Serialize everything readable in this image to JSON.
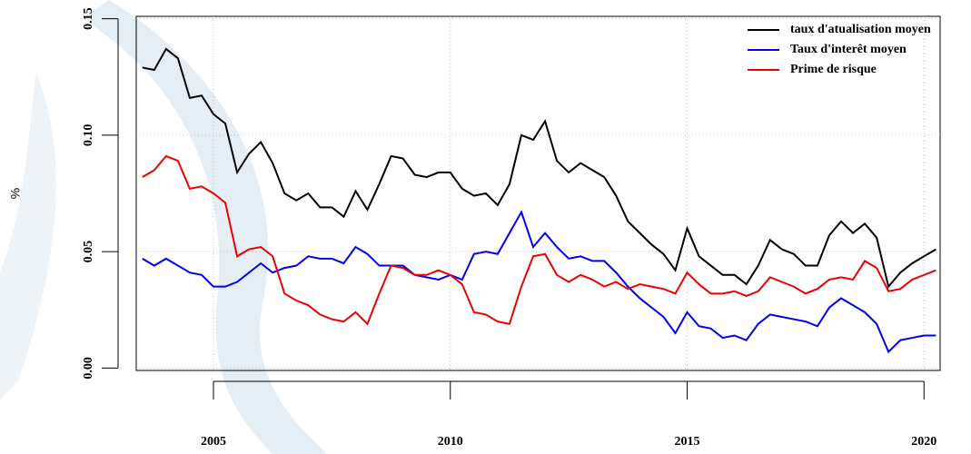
{
  "chart_data": {
    "type": "line",
    "ylabel": "%",
    "x": [
      2003.5,
      2003.75,
      2004,
      2004.25,
      2004.5,
      2004.75,
      2005,
      2005.25,
      2005.5,
      2005.75,
      2006,
      2006.25,
      2006.5,
      2006.75,
      2007,
      2007.25,
      2007.5,
      2007.75,
      2008,
      2008.25,
      2008.5,
      2008.75,
      2009,
      2009.25,
      2009.5,
      2009.75,
      2010,
      2010.25,
      2010.5,
      2010.75,
      2011,
      2011.25,
      2011.5,
      2011.75,
      2012,
      2012.25,
      2012.5,
      2012.75,
      2013,
      2013.25,
      2013.5,
      2013.75,
      2014,
      2014.25,
      2014.5,
      2014.75,
      2015,
      2015.25,
      2015.5,
      2015.75,
      2016,
      2016.25,
      2016.5,
      2016.75,
      2017,
      2017.25,
      2017.5,
      2017.75,
      2018,
      2018.25,
      2018.5,
      2018.75,
      2019,
      2019.25,
      2019.5,
      2019.75,
      2020,
      2020.25
    ],
    "series": [
      {
        "name": "taux d'atualisation moyen",
        "color": "#000000",
        "values": [
          0.129,
          0.128,
          0.137,
          0.133,
          0.116,
          0.117,
          0.109,
          0.105,
          0.084,
          0.092,
          0.097,
          0.088,
          0.075,
          0.072,
          0.075,
          0.069,
          0.069,
          0.065,
          0.076,
          0.068,
          0.079,
          0.091,
          0.09,
          0.083,
          0.082,
          0.084,
          0.084,
          0.077,
          0.074,
          0.075,
          0.07,
          0.079,
          0.1,
          0.098,
          0.106,
          0.089,
          0.084,
          0.088,
          0.085,
          0.082,
          0.074,
          0.063,
          0.058,
          0.053,
          0.049,
          0.042,
          0.06,
          0.048,
          0.044,
          0.04,
          0.04,
          0.036,
          0.044,
          0.055,
          0.051,
          0.049,
          0.044,
          0.044,
          0.057,
          0.063,
          0.058,
          0.062,
          0.056,
          0.035,
          0.041,
          0.045,
          0.048,
          0.051
        ]
      },
      {
        "name": "Taux d'interêt moyen",
        "color": "#0000ee",
        "values": [
          0.047,
          0.044,
          0.047,
          0.044,
          0.041,
          0.04,
          0.035,
          0.035,
          0.037,
          0.041,
          0.045,
          0.041,
          0.043,
          0.044,
          0.048,
          0.047,
          0.047,
          0.045,
          0.052,
          0.049,
          0.044,
          0.044,
          0.044,
          0.04,
          0.039,
          0.038,
          0.04,
          0.038,
          0.049,
          0.05,
          0.049,
          0.058,
          0.067,
          0.052,
          0.058,
          0.052,
          0.047,
          0.048,
          0.046,
          0.046,
          0.041,
          0.035,
          0.03,
          0.026,
          0.022,
          0.015,
          0.024,
          0.018,
          0.017,
          0.013,
          0.014,
          0.012,
          0.019,
          0.023,
          0.022,
          0.021,
          0.02,
          0.018,
          0.026,
          0.03,
          0.027,
          0.024,
          0.019,
          0.007,
          0.012,
          0.013,
          0.014,
          0.014
        ]
      },
      {
        "name": "Prime de risque",
        "color": "#ee0000",
        "values": [
          0.082,
          0.085,
          0.091,
          0.089,
          0.077,
          0.078,
          0.075,
          0.071,
          0.048,
          0.051,
          0.052,
          0.048,
          0.032,
          0.029,
          0.027,
          0.023,
          0.021,
          0.02,
          0.024,
          0.019,
          0.032,
          0.044,
          0.043,
          0.04,
          0.04,
          0.042,
          0.04,
          0.036,
          0.024,
          0.023,
          0.02,
          0.019,
          0.035,
          0.048,
          0.049,
          0.04,
          0.037,
          0.04,
          0.038,
          0.035,
          0.037,
          0.034,
          0.036,
          0.035,
          0.034,
          0.032,
          0.041,
          0.036,
          0.032,
          0.032,
          0.033,
          0.031,
          0.033,
          0.039,
          0.037,
          0.035,
          0.032,
          0.034,
          0.038,
          0.039,
          0.038,
          0.046,
          0.043,
          0.033,
          0.034,
          0.038,
          0.04,
          0.042
        ]
      }
    ],
    "xlim": [
      2003.37,
      2020.34
    ],
    "xticks": [
      2005,
      2010,
      2015,
      2020
    ],
    "ylim": [
      -0.001,
      0.151
    ],
    "yticks": [
      {
        "value": 0,
        "label": "0.00"
      },
      {
        "value": 0.05,
        "label": "0.05"
      },
      {
        "value": 0.1,
        "label": "0.10"
      },
      {
        "value": 0.15,
        "label": "0.15"
      }
    ],
    "grid": true,
    "legend": "top-right"
  }
}
